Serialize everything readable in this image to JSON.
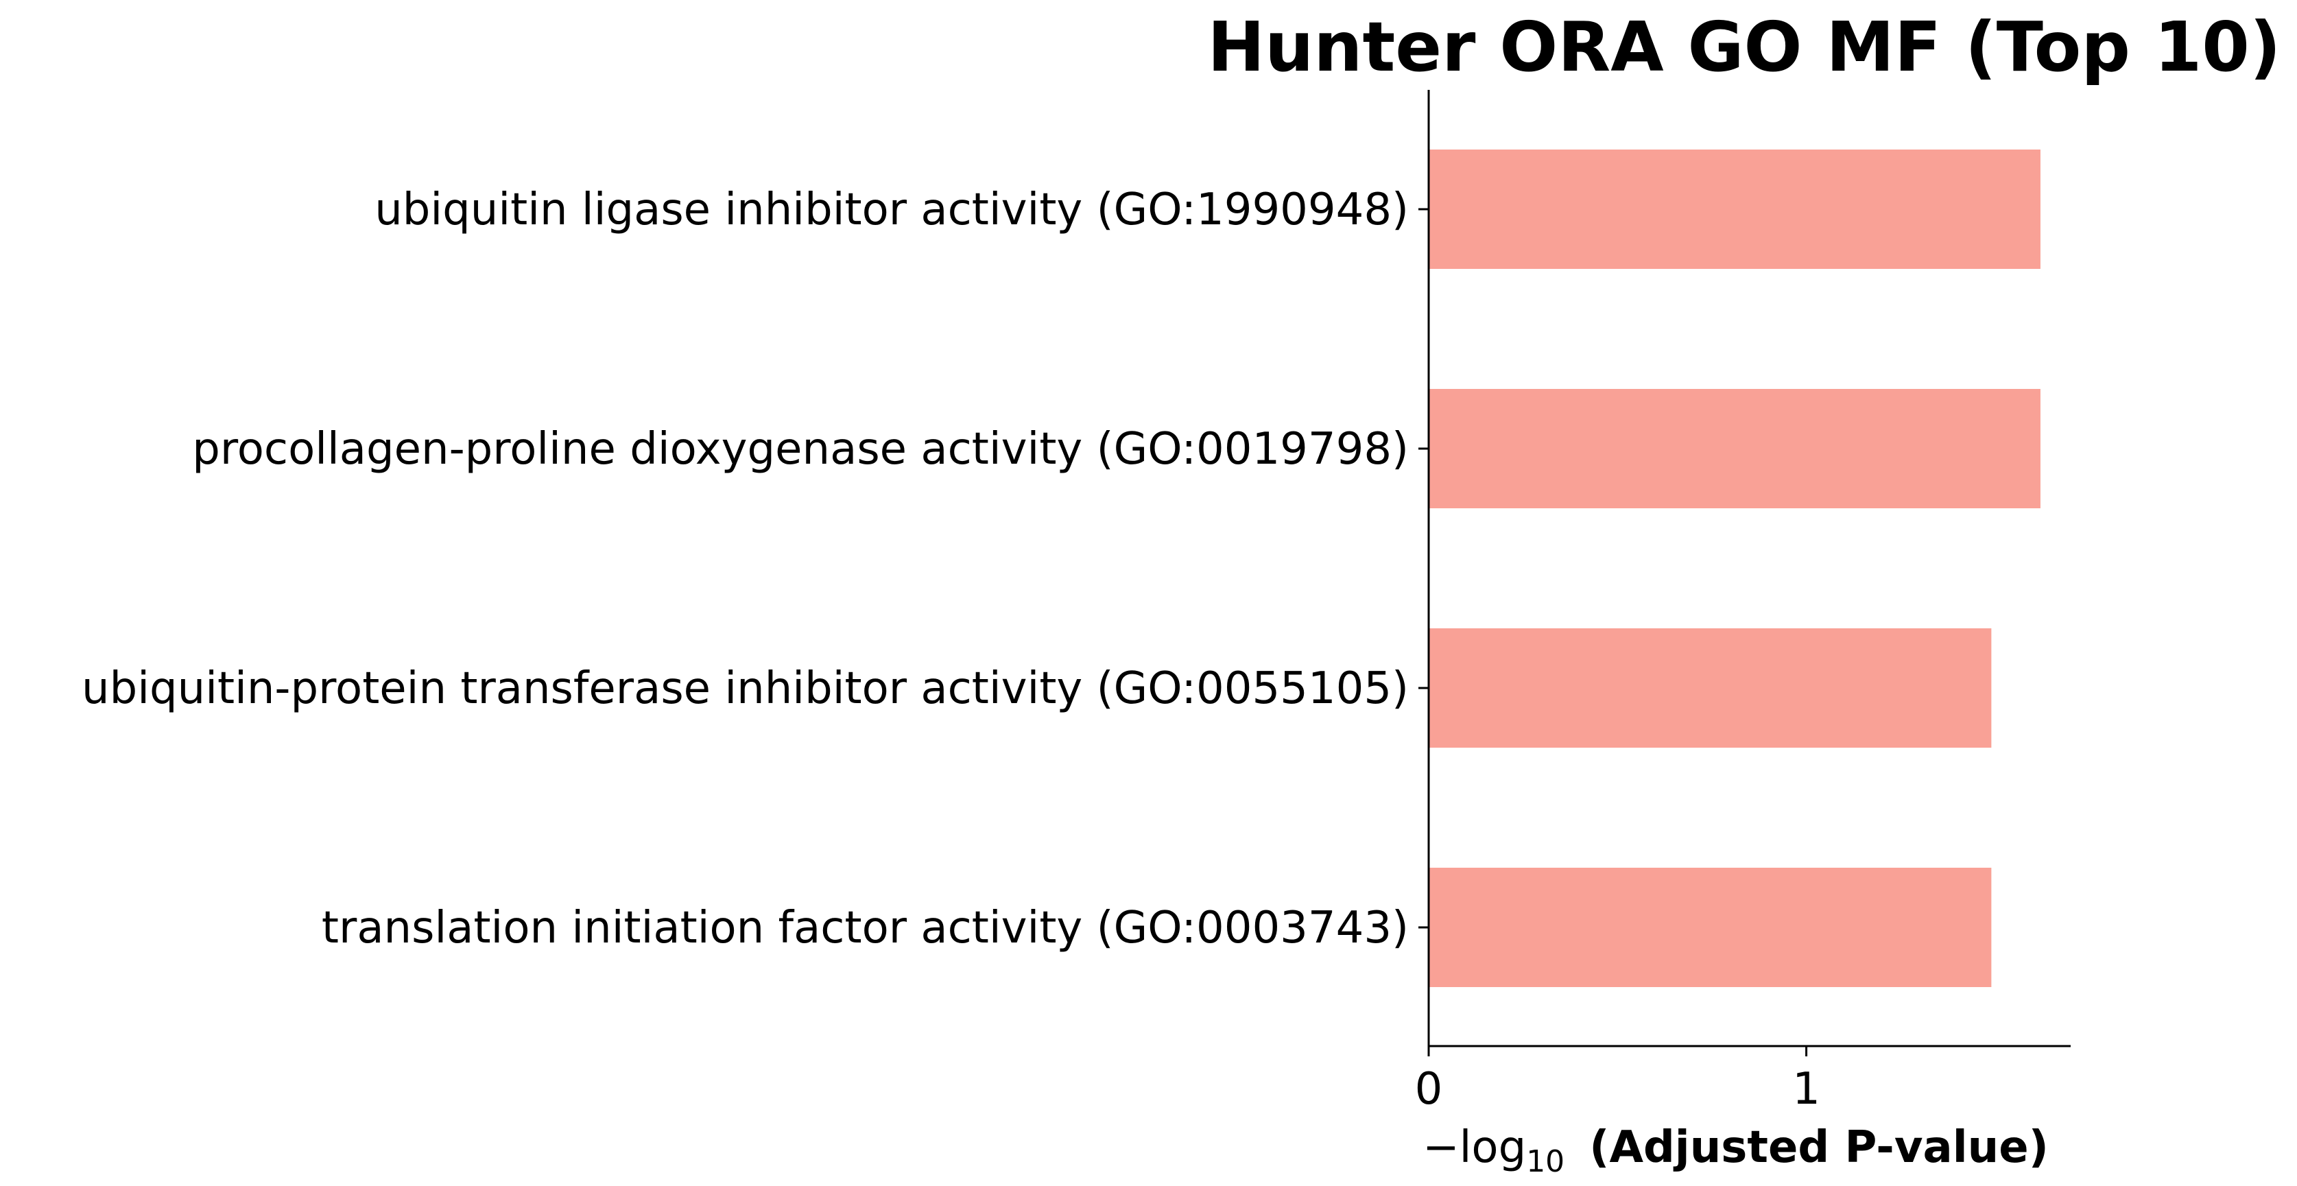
{
  "chart_data": {
    "type": "bar",
    "orientation": "horizontal",
    "title": "Hunter ORA GO MF (Top 10)",
    "categories": [
      "ubiquitin ligase inhibitor activity (GO:1990948)",
      "procollagen-proline dioxygenase activity (GO:0019798)",
      "ubiquitin-protein transferase inhibitor activity (GO:0055105)",
      "translation initiation factor activity (GO:0003743)"
    ],
    "values": [
      1.62,
      1.62,
      1.49,
      1.49
    ],
    "xlabel_prefix": "−log",
    "xlabel_subscript": "10",
    "xlabel_suffix": "(Adjusted P-value)",
    "xticks": [
      "0",
      "1"
    ],
    "xtick_values": [
      0,
      1
    ],
    "xlim": [
      0,
      1.7
    ],
    "bar_color": "#f9a196",
    "grid": false,
    "legend": "none"
  }
}
